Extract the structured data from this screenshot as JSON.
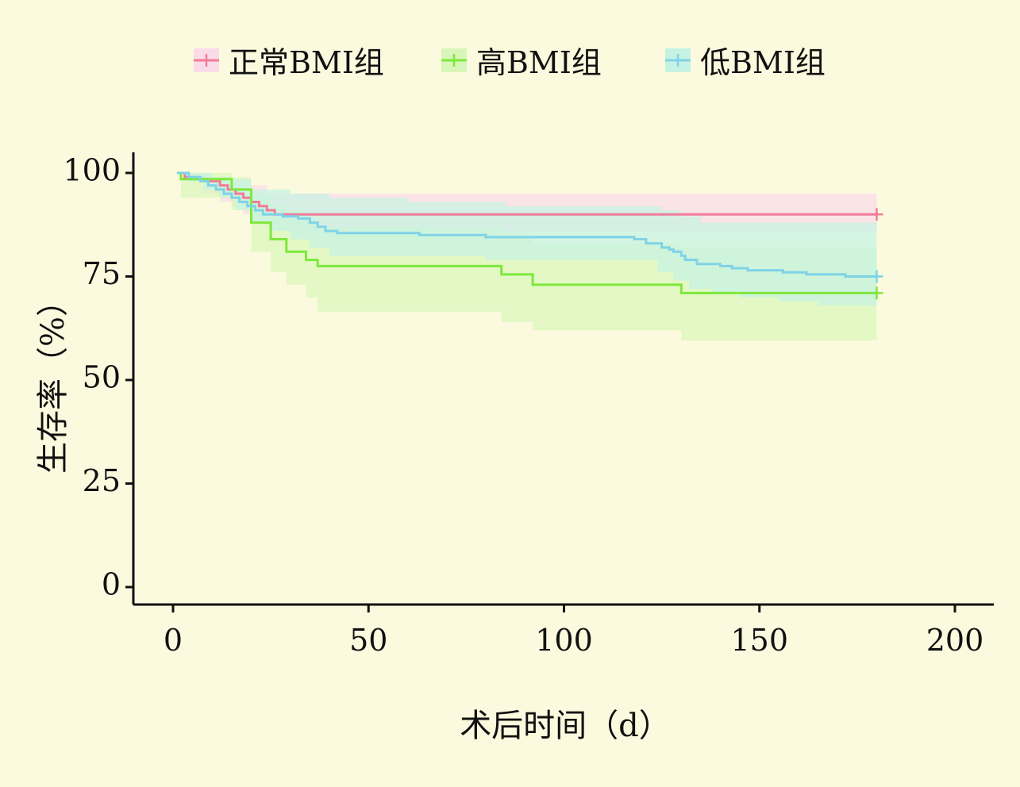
{
  "chart_data": {
    "type": "line",
    "subtype": "kaplan-meier",
    "xlabel": "术后时间（d）",
    "ylabel": "生存率（%）",
    "xlim": [
      -10,
      210
    ],
    "ylim": [
      -4,
      105
    ],
    "xticks": [
      0,
      50,
      100,
      150,
      200
    ],
    "yticks": [
      0,
      25,
      50,
      75,
      100
    ],
    "grid": false,
    "legend": "top",
    "background": "#fcfade",
    "series": [
      {
        "name": "正常BMI组",
        "color": "#f07c9a",
        "band_color": "#fadbe8",
        "steps": [
          [
            1,
            100
          ],
          [
            3,
            99
          ],
          [
            6,
            98.5
          ],
          [
            9,
            98
          ],
          [
            12,
            97
          ],
          [
            14,
            96
          ],
          [
            16,
            95
          ],
          [
            18,
            94
          ],
          [
            20,
            93
          ],
          [
            22,
            92
          ],
          [
            24,
            91
          ],
          [
            26,
            90
          ],
          [
            180,
            90
          ]
        ],
        "upper": [
          [
            1,
            100
          ],
          [
            3,
            99.5
          ],
          [
            8,
            99
          ],
          [
            14,
            98
          ],
          [
            18,
            97.5
          ],
          [
            20,
            97
          ],
          [
            24,
            95
          ],
          [
            180,
            95
          ]
        ],
        "lower": [
          [
            1,
            100
          ],
          [
            3,
            98
          ],
          [
            8,
            95
          ],
          [
            12,
            93
          ],
          [
            15,
            92
          ],
          [
            18,
            90
          ],
          [
            20,
            89
          ],
          [
            22,
            88
          ],
          [
            24,
            87
          ],
          [
            26,
            86
          ],
          [
            180,
            86
          ]
        ],
        "censor": [
          180,
          90
        ]
      },
      {
        "name": "高BMI组",
        "color": "#7ee83c",
        "band_color": "#d9f6ba",
        "steps": [
          [
            1,
            100
          ],
          [
            2,
            98.5
          ],
          [
            14,
            98.5
          ],
          [
            15,
            96
          ],
          [
            19,
            96
          ],
          [
            20,
            88
          ],
          [
            24,
            88
          ],
          [
            25,
            84
          ],
          [
            28,
            84
          ],
          [
            29,
            81
          ],
          [
            33,
            81
          ],
          [
            34,
            79
          ],
          [
            36,
            79
          ],
          [
            37,
            77.5
          ],
          [
            83,
            77.5
          ],
          [
            84,
            75.5
          ],
          [
            91,
            75.5
          ],
          [
            92,
            73
          ],
          [
            129,
            73
          ],
          [
            130,
            71
          ],
          [
            180,
            71
          ]
        ],
        "upper": [
          [
            1,
            100
          ],
          [
            14,
            100
          ],
          [
            15,
            99
          ],
          [
            19,
            99
          ],
          [
            20,
            95
          ],
          [
            24,
            95
          ],
          [
            25,
            92
          ],
          [
            28,
            92
          ],
          [
            29,
            91
          ],
          [
            33,
            91
          ],
          [
            34,
            89
          ],
          [
            36,
            89
          ],
          [
            37,
            87
          ],
          [
            83,
            87
          ],
          [
            84,
            85
          ],
          [
            91,
            85
          ],
          [
            92,
            83
          ],
          [
            129,
            83
          ],
          [
            130,
            82
          ],
          [
            180,
            82
          ]
        ],
        "lower": [
          [
            1,
            100
          ],
          [
            2,
            94
          ],
          [
            14,
            94
          ],
          [
            15,
            91
          ],
          [
            19,
            91
          ],
          [
            20,
            81
          ],
          [
            24,
            81
          ],
          [
            25,
            76
          ],
          [
            28,
            76
          ],
          [
            29,
            73
          ],
          [
            33,
            73
          ],
          [
            34,
            70
          ],
          [
            36,
            70
          ],
          [
            37,
            66.5
          ],
          [
            83,
            66.5
          ],
          [
            84,
            64
          ],
          [
            91,
            64
          ],
          [
            92,
            62
          ],
          [
            129,
            62
          ],
          [
            130,
            59.5
          ],
          [
            180,
            59.5
          ]
        ],
        "censor": [
          180,
          71
        ]
      },
      {
        "name": "低BMI组",
        "color": "#7fd3e6",
        "band_color": "#c6f2e4",
        "steps": [
          [
            1,
            100
          ],
          [
            4,
            99
          ],
          [
            7,
            98
          ],
          [
            9,
            97
          ],
          [
            11,
            96
          ],
          [
            13,
            95
          ],
          [
            15,
            94
          ],
          [
            17,
            93
          ],
          [
            19,
            92
          ],
          [
            21,
            91
          ],
          [
            23,
            90
          ],
          [
            27,
            90
          ],
          [
            28,
            89.5
          ],
          [
            32,
            89
          ],
          [
            35,
            88
          ],
          [
            37,
            87
          ],
          [
            39,
            86
          ],
          [
            42,
            85.5
          ],
          [
            60,
            85.5
          ],
          [
            63,
            85
          ],
          [
            79,
            85
          ],
          [
            80,
            84.5
          ],
          [
            117,
            84.5
          ],
          [
            118,
            84
          ],
          [
            121,
            83
          ],
          [
            125,
            82
          ],
          [
            127,
            81.5
          ],
          [
            128,
            81
          ],
          [
            130,
            80
          ],
          [
            131,
            79
          ],
          [
            134,
            78
          ],
          [
            138,
            78
          ],
          [
            140,
            77.5
          ],
          [
            143,
            77
          ],
          [
            147,
            76.5
          ],
          [
            155,
            76.5
          ],
          [
            156,
            76
          ],
          [
            160,
            76
          ],
          [
            162,
            75.5
          ],
          [
            170,
            75.5
          ],
          [
            172,
            75
          ],
          [
            180,
            75
          ]
        ],
        "upper": [
          [
            1,
            100
          ],
          [
            5,
            100
          ],
          [
            10,
            99
          ],
          [
            15,
            98.5
          ],
          [
            20,
            96
          ],
          [
            30,
            95
          ],
          [
            40,
            94
          ],
          [
            55,
            94
          ],
          [
            60,
            93
          ],
          [
            80,
            93
          ],
          [
            85,
            92
          ],
          [
            115,
            92
          ],
          [
            125,
            91
          ],
          [
            130,
            89.5
          ],
          [
            135,
            88
          ],
          [
            180,
            88
          ]
        ],
        "lower": [
          [
            1,
            100
          ],
          [
            4,
            98
          ],
          [
            8,
            96
          ],
          [
            12,
            94
          ],
          [
            16,
            91
          ],
          [
            20,
            88
          ],
          [
            25,
            86
          ],
          [
            30,
            84
          ],
          [
            35,
            82
          ],
          [
            40,
            80
          ],
          [
            60,
            80
          ],
          [
            80,
            79
          ],
          [
            118,
            79
          ],
          [
            124,
            76
          ],
          [
            128,
            74
          ],
          [
            132,
            72
          ],
          [
            138,
            71
          ],
          [
            145,
            70
          ],
          [
            155,
            69
          ],
          [
            165,
            68
          ],
          [
            180,
            67
          ]
        ],
        "censor": [
          180,
          75
        ]
      }
    ]
  }
}
